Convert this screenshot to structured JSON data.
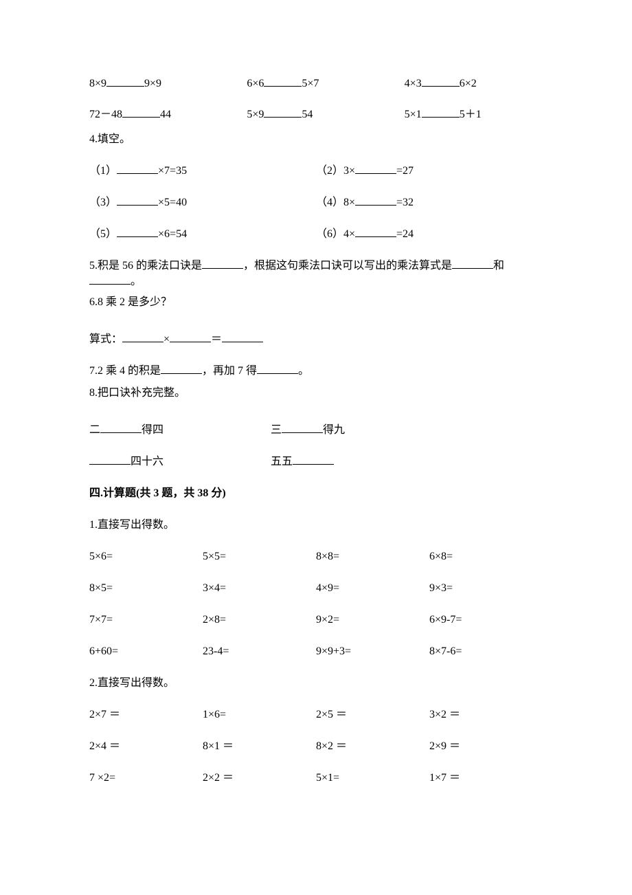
{
  "q3": {
    "row1": {
      "c1a": "8×9",
      "c1b": "9×9",
      "c2a": "6×6",
      "c2b": "5×7",
      "c3a": "4×3",
      "c3b": "6×2"
    },
    "row2": {
      "c1a": "72－48",
      "c1b": "44",
      "c2a": "5×9",
      "c2b": "54",
      "c3a": "5×1",
      "c3b": "5＋1"
    }
  },
  "q4": {
    "title": "4.填空。",
    "i1l": "（1）",
    "i1r": "×7=35",
    "i2l": "（2）3×",
    "i2r": "=27",
    "i3l": "（3）",
    "i3r": "×5=40",
    "i4l": "（4）8×",
    "i4r": "=32",
    "i5l": "（5）",
    "i5r": "×6=54",
    "i6l": "（6）4×",
    "i6r": "=24"
  },
  "q5": {
    "p1": "5.积是 56 的乘法口诀是",
    "p2": "，根据这句乘法口诀可以写出的乘法算式是",
    "p3": "和",
    "p4": "。"
  },
  "q6": {
    "title": "6.8 乘 2 是多少？",
    "l1": "算式：",
    "l2": "×",
    "l3": "＝"
  },
  "q7": {
    "p1": "7.2 乘 4 的积是",
    "p2": "，再加 7 得",
    "p3": "。"
  },
  "q8": {
    "title": "8.把口诀补充完整。",
    "r1c1a": "二",
    "r1c1b": "得四",
    "r1c2a": "三",
    "r1c2b": "得九",
    "r2c1": "四十六",
    "r2c2a": "五五"
  },
  "sec4": {
    "title": "四.计算题(共 3 题，共 38 分)"
  },
  "p1": {
    "title": "1.直接写出得数。",
    "r1": [
      "5×6=",
      "5×5=",
      "8×8=",
      "6×8="
    ],
    "r2": [
      "8×5=",
      "3×4=",
      "4×9=",
      "9×3="
    ],
    "r3": [
      "7×7=",
      "2×8=",
      "9×2=",
      "6×9-7="
    ],
    "r4": [
      "6+60=",
      "23-4=",
      "9×9+3=",
      "8×7-6="
    ]
  },
  "p2": {
    "title": "2.直接写出得数。",
    "r1": [
      "2×7 ＝",
      "1×6=",
      "2×5 ＝",
      "3×2 ＝"
    ],
    "r2": [
      "2×4 ＝",
      "8×1 ＝",
      "8×2 ＝",
      "2×9 ＝"
    ],
    "r3": [
      "7 ×2=",
      "2×2 ＝",
      "5×1=",
      "1×7 ＝"
    ]
  }
}
